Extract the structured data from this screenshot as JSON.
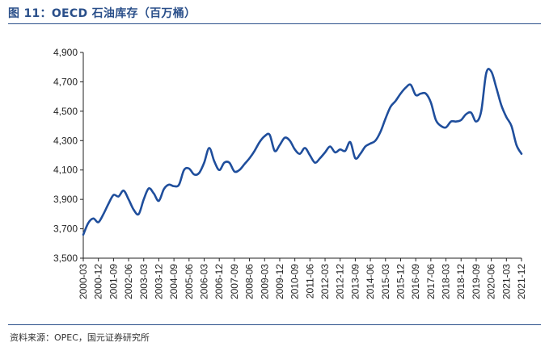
{
  "header": {
    "title": "图 11：OECD 石油库存（百万桶）"
  },
  "footer": {
    "source": "资料来源：OPEC，国元证券研究所"
  },
  "chart_data": {
    "type": "line",
    "title": "图 11：OECD 石油库存（百万桶）",
    "xlabel": "",
    "ylabel": "",
    "ylim": [
      3500,
      4900
    ],
    "y_ticks": [
      3500,
      3700,
      3900,
      4100,
      4300,
      4500,
      4700,
      4900
    ],
    "y_tick_labels": [
      "3,500",
      "3,700",
      "3,900",
      "4,100",
      "4,300",
      "4,500",
      "4,700",
      "4,900"
    ],
    "x_tick_labels": [
      "2000-03",
      "2000-12",
      "2001-09",
      "2002-06",
      "2003-03",
      "2003-12",
      "2004-09",
      "2005-06",
      "2006-03",
      "2006-12",
      "2007-09",
      "2008-06",
      "2009-03",
      "2009-12",
      "2010-09",
      "2011-06",
      "2012-03",
      "2012-12",
      "2013-09",
      "2014-06",
      "2015-03",
      "2015-12",
      "2016-09",
      "2017-06",
      "2018-03",
      "2018-12",
      "2019-09",
      "2020-06",
      "2021-03",
      "2021-12"
    ],
    "grid": false,
    "series": [
      {
        "color": "#1f4e9c",
        "points": [
          [
            "2000-03",
            3660
          ],
          [
            "2000-06",
            3740
          ],
          [
            "2000-09",
            3770
          ],
          [
            "2000-12",
            3745
          ],
          [
            "2001-03",
            3800
          ],
          [
            "2001-06",
            3870
          ],
          [
            "2001-09",
            3930
          ],
          [
            "2001-12",
            3920
          ],
          [
            "2002-03",
            3960
          ],
          [
            "2002-06",
            3900
          ],
          [
            "2002-09",
            3830
          ],
          [
            "2002-12",
            3800
          ],
          [
            "2003-03",
            3900
          ],
          [
            "2003-06",
            3975
          ],
          [
            "2003-09",
            3940
          ],
          [
            "2003-12",
            3890
          ],
          [
            "2004-03",
            3970
          ],
          [
            "2004-06",
            4000
          ],
          [
            "2004-09",
            3990
          ],
          [
            "2004-12",
            4000
          ],
          [
            "2005-03",
            4100
          ],
          [
            "2005-06",
            4110
          ],
          [
            "2005-09",
            4070
          ],
          [
            "2005-12",
            4080
          ],
          [
            "2006-03",
            4150
          ],
          [
            "2006-06",
            4250
          ],
          [
            "2006-09",
            4160
          ],
          [
            "2006-12",
            4100
          ],
          [
            "2007-03",
            4150
          ],
          [
            "2007-06",
            4150
          ],
          [
            "2007-09",
            4090
          ],
          [
            "2007-12",
            4100
          ],
          [
            "2008-03",
            4140
          ],
          [
            "2008-06",
            4180
          ],
          [
            "2008-09",
            4230
          ],
          [
            "2008-12",
            4290
          ],
          [
            "2009-03",
            4330
          ],
          [
            "2009-06",
            4340
          ],
          [
            "2009-09",
            4230
          ],
          [
            "2009-12",
            4270
          ],
          [
            "2010-03",
            4320
          ],
          [
            "2010-06",
            4300
          ],
          [
            "2010-09",
            4240
          ],
          [
            "2010-12",
            4210
          ],
          [
            "2011-03",
            4250
          ],
          [
            "2011-06",
            4200
          ],
          [
            "2011-09",
            4150
          ],
          [
            "2011-12",
            4180
          ],
          [
            "2012-03",
            4220
          ],
          [
            "2012-06",
            4260
          ],
          [
            "2012-09",
            4220
          ],
          [
            "2012-12",
            4240
          ],
          [
            "2013-03",
            4230
          ],
          [
            "2013-06",
            4290
          ],
          [
            "2013-09",
            4180
          ],
          [
            "2013-12",
            4210
          ],
          [
            "2014-03",
            4260
          ],
          [
            "2014-06",
            4280
          ],
          [
            "2014-09",
            4300
          ],
          [
            "2014-12",
            4360
          ],
          [
            "2015-03",
            4450
          ],
          [
            "2015-06",
            4530
          ],
          [
            "2015-09",
            4570
          ],
          [
            "2015-12",
            4620
          ],
          [
            "2016-03",
            4660
          ],
          [
            "2016-06",
            4680
          ],
          [
            "2016-09",
            4610
          ],
          [
            "2016-12",
            4620
          ],
          [
            "2017-03",
            4620
          ],
          [
            "2017-06",
            4560
          ],
          [
            "2017-09",
            4440
          ],
          [
            "2017-12",
            4400
          ],
          [
            "2018-03",
            4390
          ],
          [
            "2018-06",
            4430
          ],
          [
            "2018-09",
            4430
          ],
          [
            "2018-12",
            4440
          ],
          [
            "2019-03",
            4480
          ],
          [
            "2019-06",
            4490
          ],
          [
            "2019-09",
            4430
          ],
          [
            "2019-12",
            4500
          ],
          [
            "2020-03",
            4760
          ],
          [
            "2020-06",
            4770
          ],
          [
            "2020-09",
            4660
          ],
          [
            "2020-12",
            4540
          ],
          [
            "2021-03",
            4460
          ],
          [
            "2021-06",
            4400
          ],
          [
            "2021-09",
            4270
          ],
          [
            "2021-12",
            4210
          ]
        ]
      }
    ]
  }
}
